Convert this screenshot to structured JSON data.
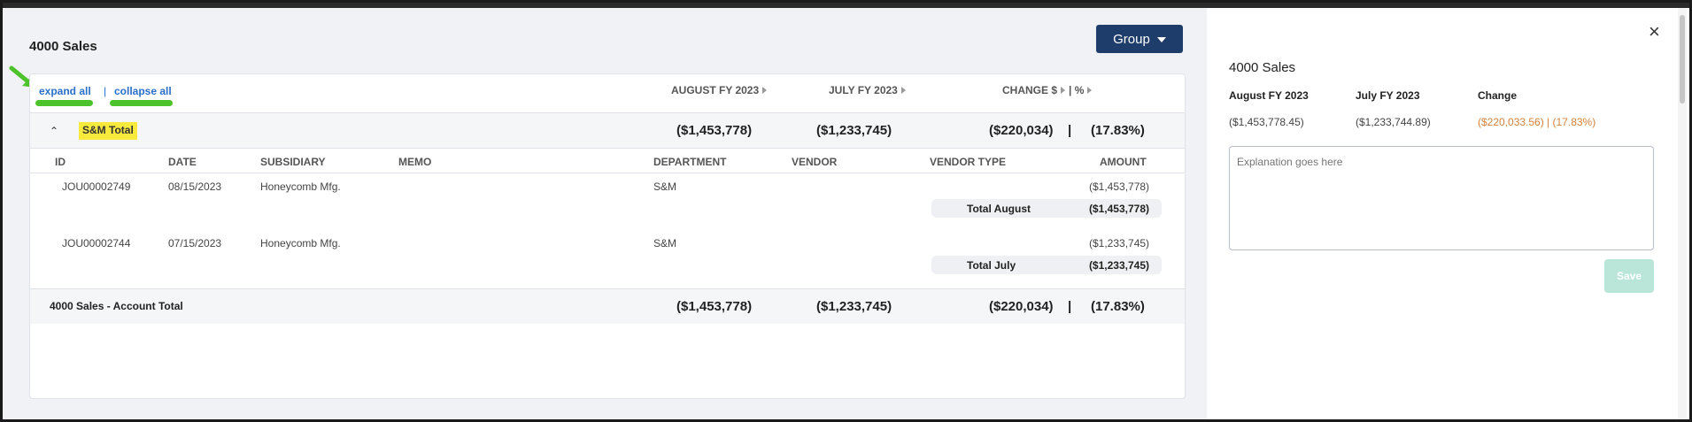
{
  "panel_title": "4000 Sales",
  "group_button": "Group",
  "controls": {
    "expand": "expand all",
    "separator": "|",
    "collapse": "collapse all"
  },
  "columns": {
    "august": "AUGUST FY 2023",
    "july": "JULY FY 2023",
    "change": "CHANGE $",
    "pct_sep": "| %"
  },
  "group": {
    "label": "S&M Total",
    "august": "($1,453,778)",
    "july": "($1,233,745)",
    "change": "($220,034)",
    "pipe": "|",
    "pct": "(17.83%)"
  },
  "detail_headers": [
    "ID",
    "DATE",
    "SUBSIDIARY",
    "MEMO",
    "DEPARTMENT",
    "VENDOR",
    "VENDOR TYPE",
    "AMOUNT"
  ],
  "rows": [
    {
      "id": "JOU00002749",
      "date": "08/15/2023",
      "subsidiary": "Honeycomb Mfg.",
      "department": "S&M",
      "amount": "($1,453,778)",
      "total_label": "Total August",
      "total_value": "($1,453,778)"
    },
    {
      "id": "JOU00002744",
      "date": "07/15/2023",
      "subsidiary": "Honeycomb Mfg.",
      "department": "S&M",
      "amount": "($1,233,745)",
      "total_label": "Total July",
      "total_value": "($1,233,745)"
    }
  ],
  "account_total": {
    "label": "4000 Sales - Account Total",
    "august": "($1,453,778)",
    "july": "($1,233,745)",
    "change": "($220,034)",
    "pipe": "|",
    "pct": "(17.83%)"
  },
  "side": {
    "title": "4000 Sales",
    "col_august": "August FY 2023",
    "col_july": "July FY 2023",
    "col_change": "Change",
    "val_august": "($1,453,778.45)",
    "val_july": "($1,233,744.89)",
    "val_change": "($220,033.56) | (17.83%)",
    "placeholder": "Explanation goes here",
    "save": "Save",
    "close": "×"
  },
  "colors": {
    "accent": "#1f3d6b",
    "link": "#2a6fc9",
    "highlight": "#f7ea3c",
    "annotation": "#4cc22b",
    "change": "#d4823c",
    "save_disabled": "#b9e6d8"
  },
  "icons": [
    "arrow-annotation-icon",
    "caret-down-icon",
    "chevron-up-icon",
    "sort-triangle-icon",
    "close-icon"
  ]
}
